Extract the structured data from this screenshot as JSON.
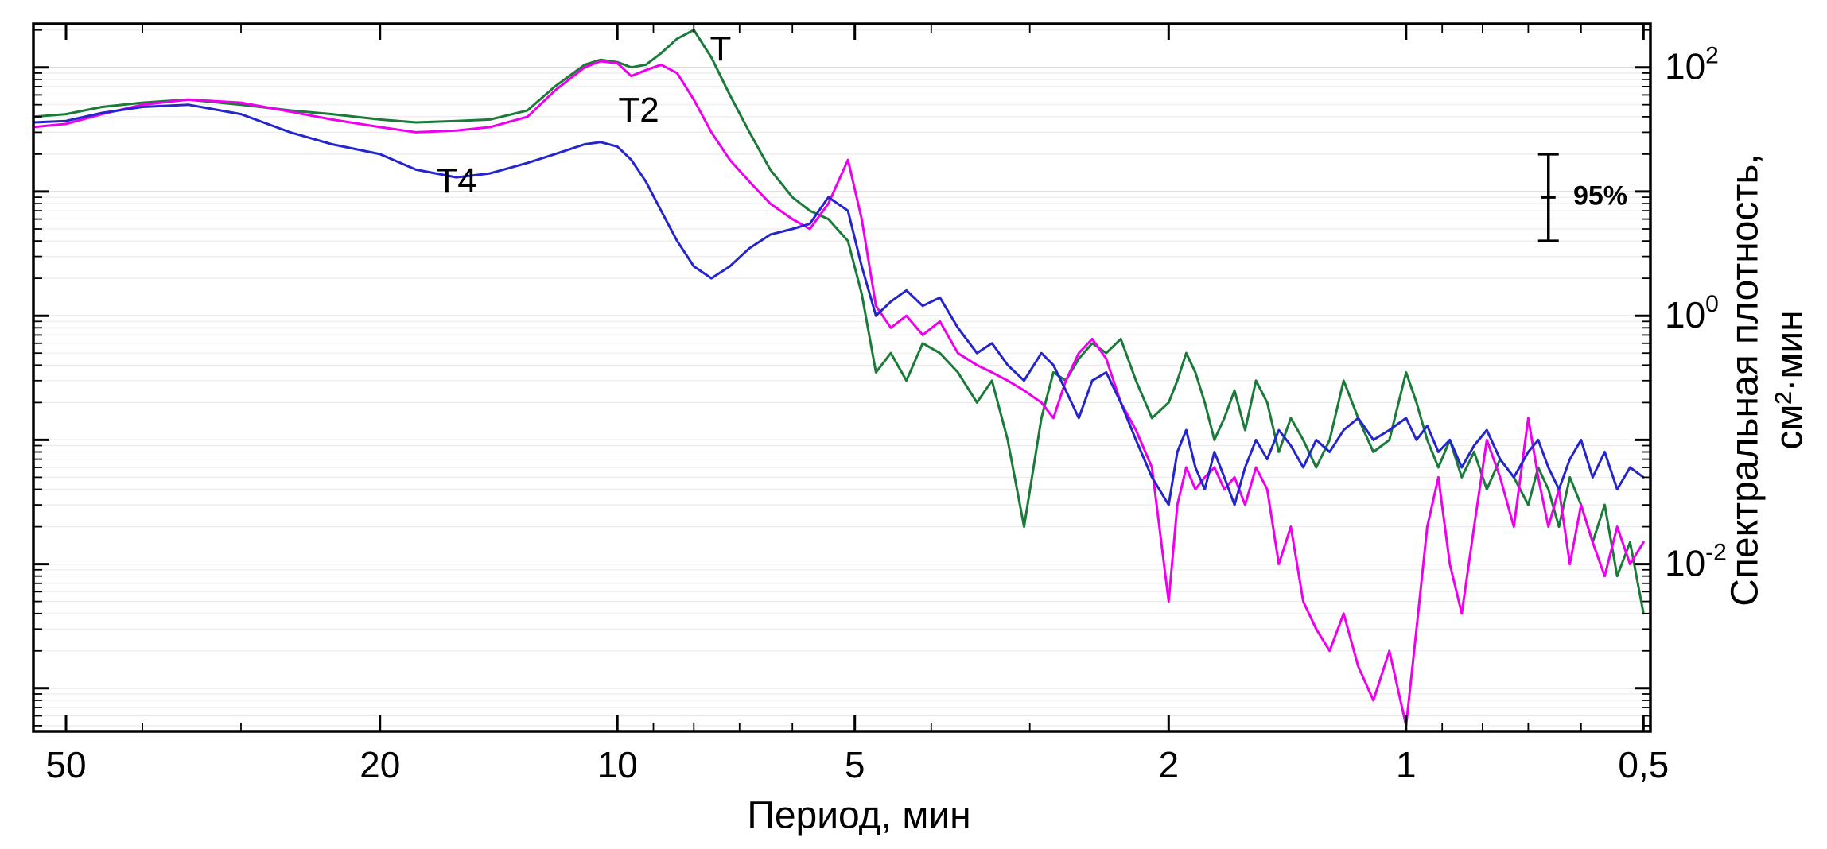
{
  "chart_data": {
    "type": "line",
    "title": "",
    "xlabel": "Период, мин",
    "ylabel": "Спектральная плотность, см²·мин",
    "ylabel_line1": "Спектральная плотность,",
    "ylabel_line2": "см²·мин",
    "x_scale": "log-reversed",
    "y_scale": "log",
    "x_domain": [
      55,
      0.49
    ],
    "y_domain": [
      0.00045,
      224
    ],
    "grid": "horizontal-log-minor",
    "legend_position": "inline-curve-labels",
    "x_ticks": [
      {
        "value": 50,
        "label": "50"
      },
      {
        "value": 20,
        "label": "20"
      },
      {
        "value": 10,
        "label": "10"
      },
      {
        "value": 5,
        "label": "5"
      },
      {
        "value": 2,
        "label": "2"
      },
      {
        "value": 1,
        "label": "1"
      },
      {
        "value": 0.5,
        "label": "0,5"
      }
    ],
    "y_ticks": [
      {
        "value": 100,
        "base": "10",
        "exp": "2"
      },
      {
        "value": 1,
        "base": "10",
        "exp": "0"
      },
      {
        "value": 0.01,
        "base": "10",
        "exp": "-2"
      }
    ],
    "periods": [
      55,
      50,
      45,
      40,
      35,
      30,
      26,
      23,
      20,
      18,
      16,
      14.5,
      13,
      12,
      11,
      10.5,
      10,
      9.6,
      9.2,
      8.8,
      8.4,
      8.0,
      7.6,
      7.2,
      6.8,
      6.4,
      6.0,
      5.7,
      5.4,
      5.1,
      4.9,
      4.7,
      4.5,
      4.3,
      4.1,
      3.9,
      3.7,
      3.5,
      3.35,
      3.2,
      3.05,
      2.9,
      2.8,
      2.7,
      2.6,
      2.5,
      2.4,
      2.3,
      2.2,
      2.1,
      2.0,
      1.95,
      1.9,
      1.85,
      1.8,
      1.75,
      1.7,
      1.65,
      1.6,
      1.55,
      1.5,
      1.45,
      1.4,
      1.35,
      1.3,
      1.25,
      1.2,
      1.15,
      1.1,
      1.05,
      1.0,
      0.97,
      0.94,
      0.91,
      0.88,
      0.85,
      0.82,
      0.79,
      0.76,
      0.73,
      0.7,
      0.68,
      0.66,
      0.64,
      0.62,
      0.6,
      0.58,
      0.56,
      0.54,
      0.52,
      0.5
    ],
    "series": [
      {
        "name": "T",
        "color": "#1a7a38",
        "values": [
          40,
          42,
          48,
          52,
          55,
          50,
          45,
          42,
          38,
          36,
          37,
          38,
          45,
          70,
          105,
          115,
          110,
          100,
          105,
          130,
          170,
          200,
          120,
          60,
          30,
          15,
          9,
          7,
          6,
          4,
          1.5,
          0.35,
          0.5,
          0.3,
          0.6,
          0.5,
          0.35,
          0.2,
          0.3,
          0.1,
          0.02,
          0.15,
          0.35,
          0.3,
          0.45,
          0.6,
          0.5,
          0.65,
          0.3,
          0.15,
          0.2,
          0.3,
          0.5,
          0.35,
          0.2,
          0.1,
          0.15,
          0.25,
          0.12,
          0.3,
          0.2,
          0.08,
          0.15,
          0.1,
          0.06,
          0.1,
          0.3,
          0.15,
          0.08,
          0.1,
          0.35,
          0.2,
          0.1,
          0.06,
          0.1,
          0.05,
          0.08,
          0.04,
          0.07,
          0.05,
          0.03,
          0.06,
          0.04,
          0.02,
          0.05,
          0.03,
          0.015,
          0.03,
          0.008,
          0.015,
          0.004
        ]
      },
      {
        "name": "T2",
        "color": "#ee00ee",
        "values": [
          33,
          35,
          42,
          50,
          55,
          52,
          44,
          38,
          33,
          30,
          31,
          33,
          40,
          65,
          100,
          112,
          108,
          85,
          95,
          105,
          90,
          55,
          30,
          18,
          12,
          8,
          6,
          5,
          8,
          18,
          6,
          1.2,
          0.8,
          1.0,
          0.7,
          0.9,
          0.5,
          0.4,
          0.35,
          0.3,
          0.25,
          0.2,
          0.15,
          0.3,
          0.5,
          0.65,
          0.45,
          0.2,
          0.12,
          0.06,
          0.005,
          0.03,
          0.06,
          0.04,
          0.05,
          0.06,
          0.04,
          0.05,
          0.03,
          0.06,
          0.04,
          0.01,
          0.02,
          0.005,
          0.003,
          0.002,
          0.004,
          0.0015,
          0.0008,
          0.002,
          0.0005,
          0.003,
          0.02,
          0.05,
          0.01,
          0.004,
          0.02,
          0.1,
          0.05,
          0.02,
          0.15,
          0.05,
          0.02,
          0.04,
          0.01,
          0.03,
          0.015,
          0.008,
          0.02,
          0.01,
          0.015
        ]
      },
      {
        "name": "T4",
        "color": "#2525cc",
        "values": [
          36,
          37,
          43,
          48,
          50,
          42,
          30,
          24,
          20,
          15,
          13,
          14,
          17,
          20,
          24,
          25,
          23,
          18,
          12,
          7,
          4,
          2.5,
          2.0,
          2.5,
          3.5,
          4.5,
          5,
          5.5,
          9,
          7,
          2.5,
          1.0,
          1.3,
          1.6,
          1.2,
          1.4,
          0.8,
          0.5,
          0.6,
          0.4,
          0.3,
          0.5,
          0.4,
          0.25,
          0.15,
          0.3,
          0.35,
          0.2,
          0.1,
          0.05,
          0.03,
          0.08,
          0.12,
          0.06,
          0.04,
          0.08,
          0.05,
          0.03,
          0.06,
          0.1,
          0.07,
          0.12,
          0.09,
          0.06,
          0.1,
          0.08,
          0.12,
          0.15,
          0.1,
          0.12,
          0.15,
          0.1,
          0.13,
          0.08,
          0.1,
          0.06,
          0.09,
          0.12,
          0.07,
          0.05,
          0.08,
          0.1,
          0.06,
          0.04,
          0.07,
          0.1,
          0.05,
          0.08,
          0.04,
          0.06,
          0.05
        ]
      }
    ],
    "annotations": [
      {
        "text": "T",
        "period": 7.4,
        "value": 140
      },
      {
        "text": "T2",
        "period": 9.4,
        "value": 45
      },
      {
        "text": "T4",
        "period": 16,
        "value": 12
      }
    ],
    "error_bar": {
      "label": "95%",
      "period": 0.66,
      "high": 20,
      "mid": 9,
      "low": 4
    }
  }
}
